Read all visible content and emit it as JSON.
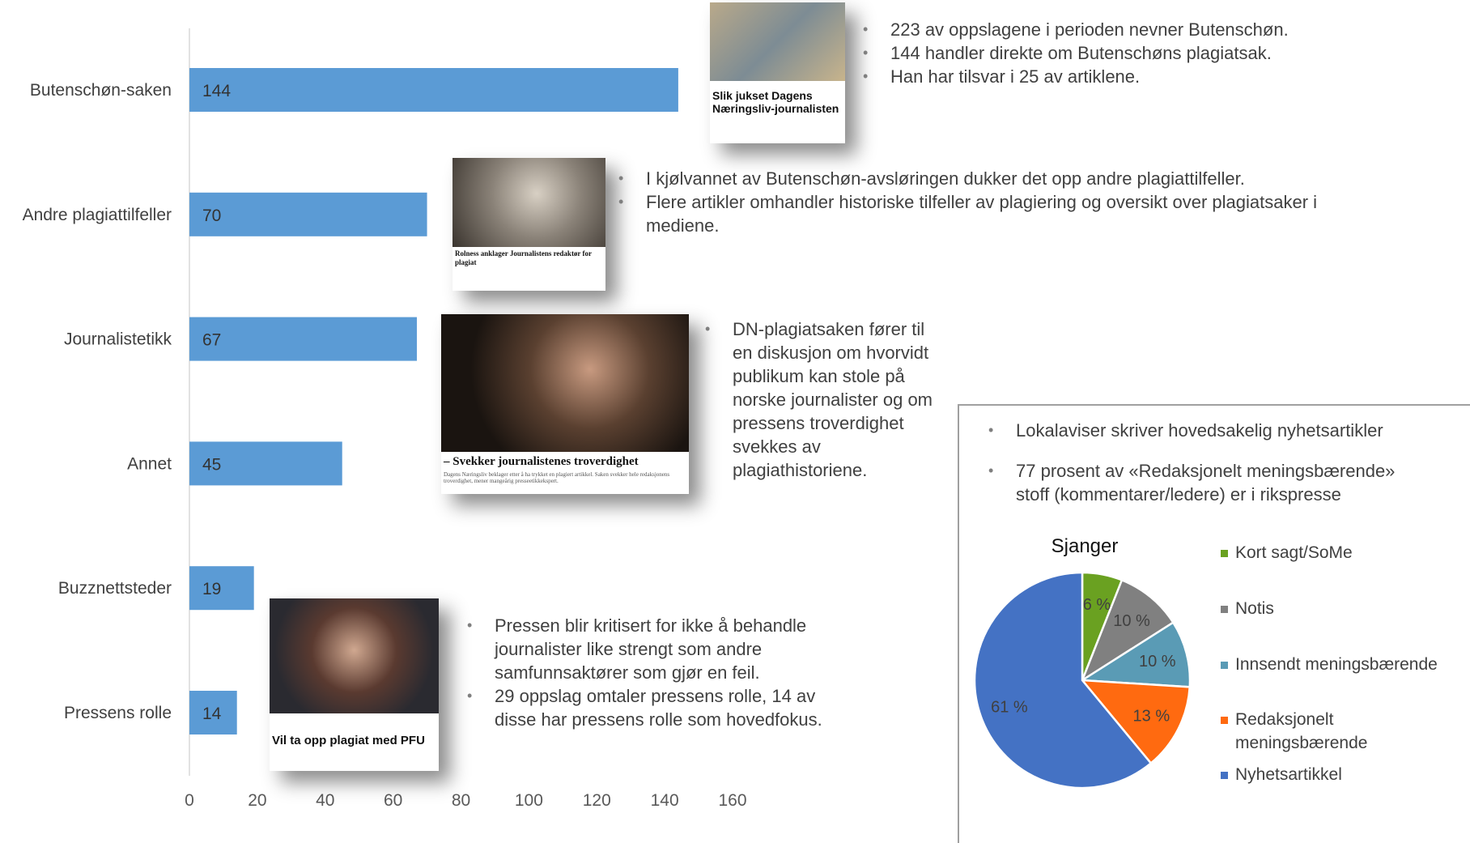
{
  "chart_data": [
    {
      "type": "bar",
      "orientation": "horizontal",
      "categories": [
        "Butenschøn-saken",
        "Andre plagiattilfeller",
        "Journalistetikk",
        "Annet",
        "Buzznettsteder",
        "Pressens rolle"
      ],
      "values": [
        144,
        70,
        67,
        45,
        19,
        14
      ],
      "color": "#5b9bd5",
      "xlim": [
        0,
        160
      ],
      "xticks": [
        0,
        20,
        40,
        60,
        80,
        100,
        120,
        140,
        160
      ]
    },
    {
      "type": "pie",
      "title": "Sjanger",
      "categories": [
        "Kort sagt/SoMe",
        "Notis",
        "Innsendt meningsbærende",
        "Redaksjonelt meningsbærende",
        "Nyhetsartikkel"
      ],
      "values": [
        6,
        10,
        10,
        13,
        61
      ],
      "value_labels": [
        "6 %",
        "10 %",
        "10 %",
        "13 %",
        "61 %"
      ],
      "colors": [
        "#6aa121",
        "#808080",
        "#5a9bb5",
        "#ff6a10",
        "#4472c4"
      ]
    }
  ],
  "notes": [
    {
      "bullets": [
        "223 av oppslagene i perioden nevner Butenschøn.",
        "144 handler direkte om Butenschøns plagiatsak.",
        "Han har tilsvar i 25 av artiklene."
      ]
    },
    {
      "bullets": [
        "I kjølvannet av Butenschøn-avsløringen dukker det opp andre plagiattilfeller.",
        "Flere artikler omhandler historiske tilfeller av plagiering og oversikt over plagiatsaker i mediene."
      ]
    },
    {
      "bullets": [
        "DN-plagiatsaken fører til en diskusjon om hvorvidt publikum kan stole på norske journalister og om pressens troverdighet svekkes av plagiathistoriene."
      ]
    },
    {
      "bullets": [
        "Pressen blir kritisert for ikke å behandle journalister like strengt som andre samfunnsaktører som gjør en feil.",
        "29 oppslag omtaler pressens rolle, 14 av disse har pressens rolle som hovedfokus."
      ]
    },
    {
      "bullets": [
        "Lokalaviser skriver hovedsakelig nyhetsartikler",
        "77 prosent av «Redaksjonelt meningsbærende» stoff (kommentarer/ledere) er i rikspresse"
      ]
    }
  ],
  "clippings": [
    {
      "headline": "Slik jukset Dagens Næringsliv-journalisten"
    },
    {
      "headline": "Rolness anklager Journalistens redaktør for plagiat"
    },
    {
      "headline": "– Svekker journalistenes troverdighet",
      "lead": "Dagens Næringsliv beklager etter å ha trykket en plagiert artikkel. Saken svekker hele redaksjonens troverdighet, mener mangeårig presseetikkekspert."
    },
    {
      "headline": "Vil ta opp plagiat med PFU"
    }
  ]
}
